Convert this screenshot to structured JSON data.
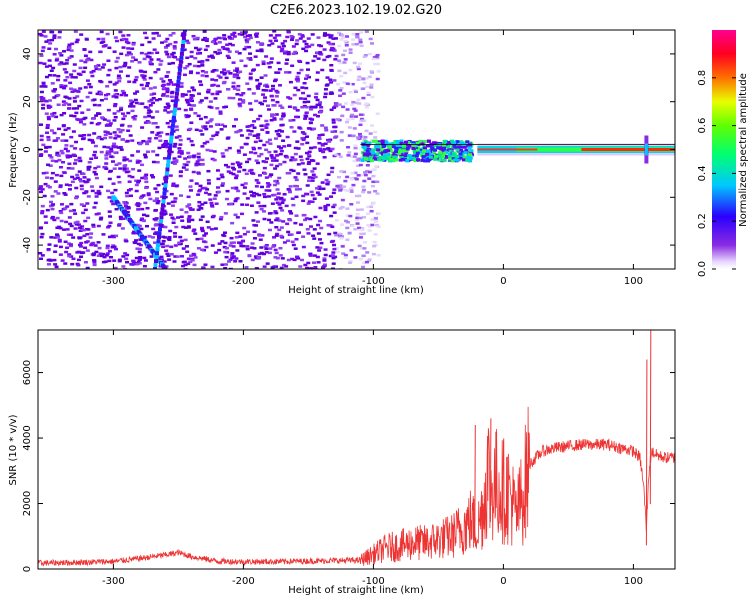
{
  "title": "C2E6.2023.102.19.02.G20",
  "chart_data": [
    {
      "type": "heatmap",
      "xlabel": "Height of straight line (km)",
      "ylabel": "Frequency (Hz)",
      "xlim": [
        -358,
        132
      ],
      "ylim": [
        -50,
        50
      ],
      "xticks": [
        -300,
        -200,
        -100,
        0,
        100
      ],
      "yticks": [
        -40,
        -20,
        0,
        20,
        40
      ],
      "colorbar": {
        "label": "Normalized spectral amplitude",
        "range": [
          0.0,
          1.0
        ],
        "ticks": [
          0.0,
          0.2,
          0.4,
          0.6,
          0.8
        ],
        "tick_labels": [
          "0.0",
          "0.2",
          "0.4",
          "0.6",
          "0.8"
        ],
        "colormap": "rainbow (white→purple→blue→cyan→green→yellow→red→magenta)"
      },
      "features": {
        "noise_region_x": [
          -358,
          -105
        ],
        "signal_band_center_hz": 0,
        "descending_line": {
          "x": [
            -300,
            -260
          ],
          "y": [
            -20,
            -50
          ]
        },
        "ascending_line": {
          "x": [
            -268,
            -245
          ],
          "y": [
            -50,
            50
          ]
        },
        "spike_x": 110
      }
    },
    {
      "type": "line",
      "xlabel": "Height of straight line (km)",
      "ylabel": "SNR (10 * v/v)",
      "xlim": [
        -358,
        132
      ],
      "ylim": [
        0,
        7300
      ],
      "xticks": [
        -300,
        -200,
        -100,
        0,
        100
      ],
      "yticks": [
        0,
        2000,
        4000,
        6000
      ],
      "color": "#ee3333",
      "series": [
        {
          "x": [
            -358,
            -330,
            -300,
            -280,
            -260,
            -250,
            -240,
            -220,
            -200,
            -170,
            -140,
            -110,
            -100,
            -90,
            -80,
            -70,
            -60,
            -50,
            -40,
            -30,
            -25,
            -20,
            -15,
            -12,
            -10,
            -5,
            0,
            5,
            10,
            15,
            20,
            30,
            40,
            50,
            60,
            70,
            80,
            90,
            100,
            105,
            108,
            110,
            112,
            114,
            117,
            120,
            125,
            132
          ],
          "y": [
            180,
            200,
            230,
            320,
            430,
            500,
            380,
            240,
            220,
            230,
            250,
            270,
            450,
            650,
            700,
            800,
            800,
            900,
            1000,
            1300,
            1500,
            1200,
            2000,
            3100,
            2400,
            2600,
            2400,
            2300,
            1600,
            2300,
            3200,
            3600,
            3700,
            3750,
            3800,
            3800,
            3800,
            3700,
            3600,
            3400,
            2500,
            1200,
            3000,
            3600,
            3500,
            3450,
            3400,
            3400
          ]
        }
      ],
      "spikes": [
        {
          "x": -22,
          "y": 4400
        },
        {
          "x": -10,
          "y": 4600
        },
        {
          "x": 110,
          "y": 6400
        },
        {
          "x": 113,
          "y": 7300
        }
      ]
    }
  ]
}
